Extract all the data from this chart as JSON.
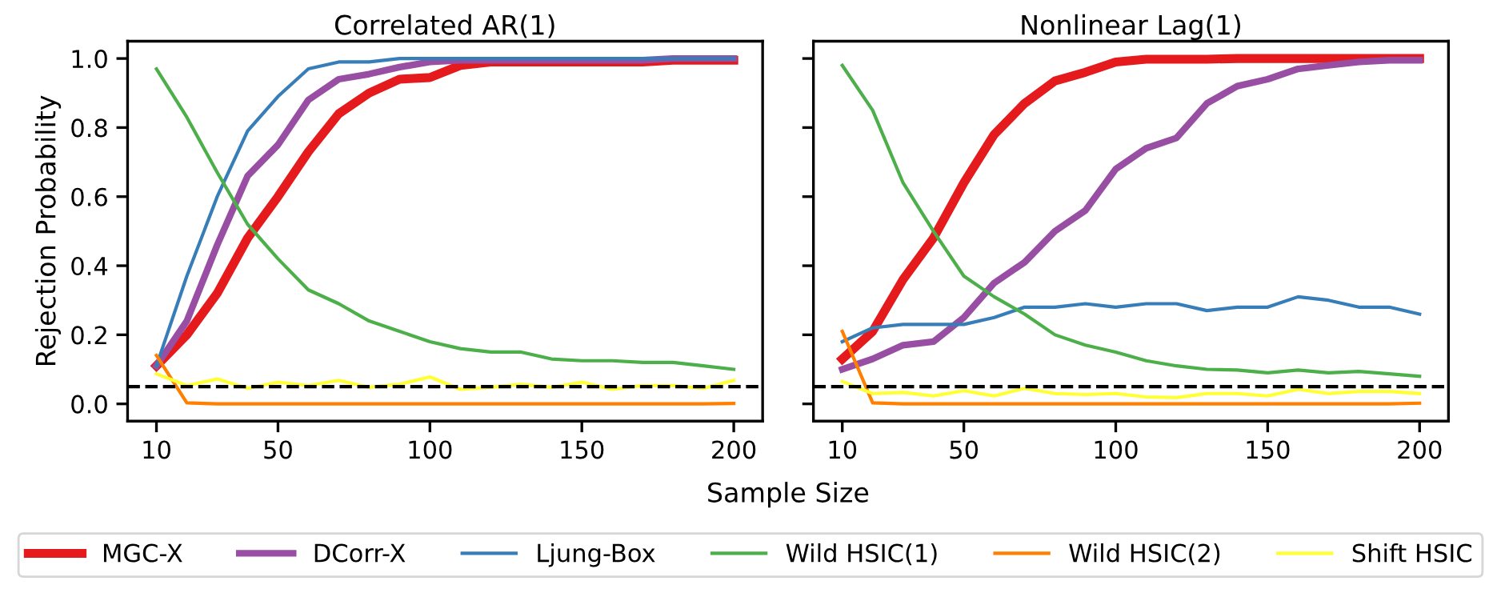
{
  "chart_data": [
    {
      "type": "line",
      "title": "Correlated AR(1)",
      "xlabel": "Sample Size",
      "ylabel": "Rejection Probability",
      "legend": "bottom",
      "grid": false,
      "marker": "none",
      "line_style": "solid",
      "x": [
        10,
        20,
        30,
        40,
        50,
        60,
        70,
        80,
        90,
        100,
        110,
        120,
        130,
        140,
        150,
        160,
        170,
        180,
        190,
        200
      ],
      "xlim": [
        0.5,
        209.5
      ],
      "xticks": [
        10,
        50,
        100,
        150,
        200
      ],
      "ylim": [
        -0.05,
        1.05
      ],
      "yticks": [
        {
          "value": 0,
          "label": "0.0"
        },
        {
          "value": 0.2,
          "label": "0.2"
        },
        {
          "value": 0.4,
          "label": "0.4"
        },
        {
          "value": 0.6,
          "label": "0.6"
        },
        {
          "value": 0.8,
          "label": "0.8"
        },
        {
          "value": 1,
          "label": "1.0"
        }
      ],
      "ref_lines": [
        {
          "axis": "y",
          "value": 0.05,
          "color": "#000000",
          "line_style": "dashed"
        }
      ],
      "series": [
        {
          "name": "MGC-X",
          "color": "#e41a1c",
          "values": [
            0.11,
            0.2,
            0.32,
            0.48,
            0.6,
            0.73,
            0.84,
            0.9,
            0.94,
            0.945,
            0.98,
            0.99,
            0.99,
            0.99,
            0.99,
            0.99,
            0.99,
            0.995,
            0.995,
            0.995
          ]
        },
        {
          "name": "DCorr-X",
          "color": "#984ea3",
          "values": [
            0.11,
            0.24,
            0.46,
            0.66,
            0.75,
            0.88,
            0.94,
            0.955,
            0.975,
            0.99,
            0.995,
            0.995,
            0.995,
            0.995,
            0.995,
            0.995,
            0.995,
            1.0,
            1.0,
            1.0
          ]
        },
        {
          "name": "Ljung-Box",
          "color": "#377eb8",
          "values": [
            0.11,
            0.37,
            0.6,
            0.79,
            0.89,
            0.97,
            0.99,
            0.99,
            1.0,
            1.0,
            1.0,
            1.0,
            1.0,
            1.0,
            1.0,
            1.0,
            1.0,
            1.0,
            1.0,
            1.0
          ]
        },
        {
          "name": "Wild HSIC(1)",
          "color": "#4daf4a",
          "values": [
            0.97,
            0.83,
            0.67,
            0.52,
            0.42,
            0.33,
            0.29,
            0.24,
            0.21,
            0.18,
            0.16,
            0.15,
            0.15,
            0.13,
            0.125,
            0.125,
            0.12,
            0.12,
            0.11,
            0.1
          ]
        },
        {
          "name": "Wild HSIC(2)",
          "color": "#ff7f00",
          "values": [
            0.14,
            0.003,
            0,
            0,
            0,
            0,
            0,
            0,
            0,
            0,
            0,
            0,
            0,
            0,
            0,
            0,
            0,
            0,
            0,
            0.001
          ]
        },
        {
          "name": "Shift HSIC",
          "color": "#ffff33",
          "values": [
            0.087,
            0.053,
            0.072,
            0.045,
            0.063,
            0.053,
            0.068,
            0.048,
            0.057,
            0.078,
            0.042,
            0.048,
            0.057,
            0.048,
            0.063,
            0.042,
            0.053,
            0.053,
            0.045,
            0.068
          ]
        }
      ]
    },
    {
      "type": "line",
      "title": "Nonlinear Lag(1)",
      "grid": false,
      "marker": "none",
      "line_style": "solid",
      "tick_labels": "x",
      "x": [
        10,
        20,
        30,
        40,
        50,
        60,
        70,
        80,
        90,
        100,
        110,
        120,
        130,
        140,
        150,
        160,
        170,
        180,
        190,
        200
      ],
      "xlim": [
        0.5,
        209.5
      ],
      "xticks": [
        10,
        50,
        100,
        150,
        200
      ],
      "ylim": [
        -0.05,
        1.05
      ],
      "yticks": [
        {
          "value": 0,
          "label": null
        },
        {
          "value": 0.2,
          "label": null
        },
        {
          "value": 0.4,
          "label": null
        },
        {
          "value": 0.6,
          "label": null
        },
        {
          "value": 0.8,
          "label": null
        },
        {
          "value": 1,
          "label": null
        }
      ],
      "ref_lines": [
        {
          "axis": "y",
          "value": 0.05,
          "color": "#000000",
          "line_style": "dashed"
        }
      ],
      "series": [
        {
          "color": "#e41a1c",
          "values": [
            0.13,
            0.21,
            0.36,
            0.48,
            0.64,
            0.78,
            0.87,
            0.935,
            0.96,
            0.99,
            0.998,
            0.998,
            0.998,
            1.0,
            1.0,
            1.0,
            1.0,
            1.0,
            1.0,
            1.0
          ]
        },
        {
          "color": "#984ea3",
          "values": [
            0.1,
            0.13,
            0.17,
            0.18,
            0.25,
            0.35,
            0.41,
            0.5,
            0.56,
            0.68,
            0.74,
            0.77,
            0.87,
            0.92,
            0.94,
            0.97,
            0.98,
            0.99,
            0.995,
            0.995
          ]
        },
        {
          "color": "#377eb8",
          "values": [
            0.18,
            0.22,
            0.23,
            0.23,
            0.23,
            0.25,
            0.28,
            0.28,
            0.29,
            0.28,
            0.29,
            0.29,
            0.27,
            0.28,
            0.28,
            0.31,
            0.3,
            0.28,
            0.28,
            0.26
          ]
        },
        {
          "color": "#4daf4a",
          "values": [
            0.98,
            0.85,
            0.64,
            0.5,
            0.37,
            0.31,
            0.26,
            0.2,
            0.17,
            0.15,
            0.125,
            0.11,
            0.1,
            0.098,
            0.09,
            0.098,
            0.09,
            0.094,
            0.087,
            0.08
          ]
        },
        {
          "color": "#ff7f00",
          "values": [
            0.21,
            0.003,
            0,
            0,
            0,
            0,
            0,
            0,
            0,
            0,
            0,
            0,
            0,
            0,
            0,
            0,
            0,
            0,
            0,
            0.002
          ]
        },
        {
          "color": "#ffff33",
          "values": [
            0.065,
            0.03,
            0.033,
            0.023,
            0.038,
            0.023,
            0.045,
            0.03,
            0.027,
            0.03,
            0.02,
            0.018,
            0.03,
            0.03,
            0.023,
            0.042,
            0.03,
            0.036,
            0.036,
            0.03
          ]
        }
      ]
    }
  ]
}
